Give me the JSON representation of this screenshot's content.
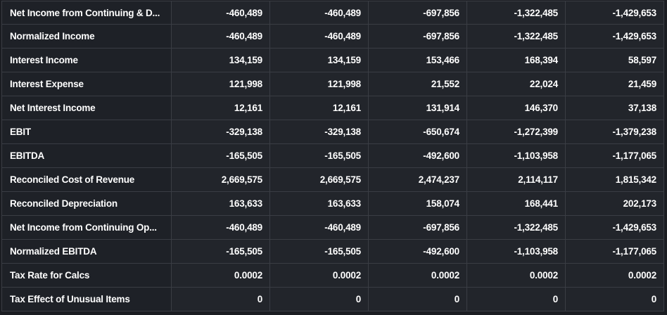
{
  "table": {
    "rows": [
      {
        "label": "Net Income from Continuing & D...",
        "values": [
          "-460,489",
          "-460,489",
          "-697,856",
          "-1,322,485",
          "-1,429,653"
        ]
      },
      {
        "label": "Normalized Income",
        "values": [
          "-460,489",
          "-460,489",
          "-697,856",
          "-1,322,485",
          "-1,429,653"
        ]
      },
      {
        "label": "Interest Income",
        "values": [
          "134,159",
          "134,159",
          "153,466",
          "168,394",
          "58,597"
        ]
      },
      {
        "label": "Interest Expense",
        "values": [
          "121,998",
          "121,998",
          "21,552",
          "22,024",
          "21,459"
        ]
      },
      {
        "label": "Net Interest Income",
        "values": [
          "12,161",
          "12,161",
          "131,914",
          "146,370",
          "37,138"
        ]
      },
      {
        "label": "EBIT",
        "values": [
          "-329,138",
          "-329,138",
          "-650,674",
          "-1,272,399",
          "-1,379,238"
        ]
      },
      {
        "label": "EBITDA",
        "values": [
          "-165,505",
          "-165,505",
          "-492,600",
          "-1,103,958",
          "-1,177,065"
        ]
      },
      {
        "label": "Reconciled Cost of Revenue",
        "values": [
          "2,669,575",
          "2,669,575",
          "2,474,237",
          "2,114,117",
          "1,815,342"
        ]
      },
      {
        "label": "Reconciled Depreciation",
        "values": [
          "163,633",
          "163,633",
          "158,074",
          "168,441",
          "202,173"
        ]
      },
      {
        "label": "Net Income from Continuing Op...",
        "values": [
          "-460,489",
          "-460,489",
          "-697,856",
          "-1,322,485",
          "-1,429,653"
        ]
      },
      {
        "label": "Normalized EBITDA",
        "values": [
          "-165,505",
          "-165,505",
          "-492,600",
          "-1,103,958",
          "-1,177,065"
        ]
      },
      {
        "label": "Tax Rate for Calcs",
        "values": [
          "0.0002",
          "0.0002",
          "0.0002",
          "0.0002",
          "0.0002"
        ]
      },
      {
        "label": "Tax Effect of Unusual Items",
        "values": [
          "0",
          "0",
          "0",
          "0",
          "0"
        ]
      }
    ]
  },
  "colors": {
    "background": "#1b1d22",
    "label_cell": "#1e2127",
    "value_cell": "#22252b",
    "border": "#3a3d44",
    "text": "#ffffff"
  }
}
